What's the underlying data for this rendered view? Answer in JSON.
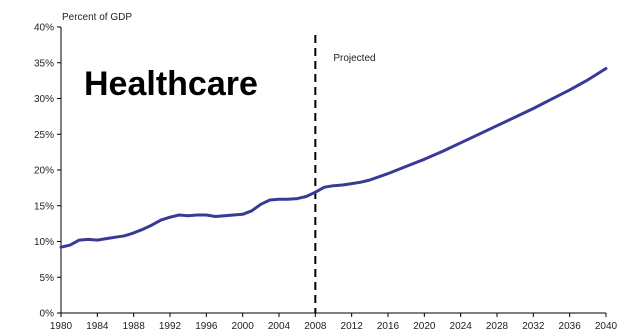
{
  "chart_data": {
    "type": "line",
    "title": "Healthcare",
    "ylabel": "Percent of GDP",
    "annotation": "Projected",
    "projection_start_x": 2008,
    "xlim": [
      1980,
      2040
    ],
    "ylim": [
      0,
      40
    ],
    "x_ticks": [
      1980,
      1984,
      1988,
      1992,
      1996,
      2000,
      2004,
      2008,
      2012,
      2016,
      2020,
      2024,
      2028,
      2032,
      2036,
      2040
    ],
    "y_ticks": [
      {
        "value": 0,
        "label": "0%"
      },
      {
        "value": 5,
        "label": "5%"
      },
      {
        "value": 10,
        "label": "10%"
      },
      {
        "value": 15,
        "label": "15%"
      },
      {
        "value": 20,
        "label": "20%"
      },
      {
        "value": 25,
        "label": "25%"
      },
      {
        "value": 30,
        "label": "30%"
      },
      {
        "value": 35,
        "label": "35%"
      },
      {
        "value": 40,
        "label": "40%"
      }
    ],
    "grid": false,
    "line_color": "#3a3a96",
    "series": [
      {
        "x": [
          1980,
          1981,
          1982,
          1983,
          1984,
          1985,
          1986,
          1987,
          1988,
          1989,
          1990,
          1991,
          1992,
          1993,
          1994,
          1995,
          1996,
          1997,
          1998,
          1999,
          2000,
          2001,
          2002,
          2003,
          2004,
          2005,
          2006,
          2007,
          2008,
          2009,
          2010,
          2011,
          2012,
          2013,
          2014,
          2016,
          2018,
          2020,
          2022,
          2024,
          2026,
          2028,
          2030,
          2032,
          2034,
          2036,
          2038,
          2040
        ],
        "y": [
          9.2,
          9.5,
          10.2,
          10.3,
          10.2,
          10.4,
          10.6,
          10.8,
          11.2,
          11.7,
          12.3,
          13.0,
          13.4,
          13.7,
          13.6,
          13.7,
          13.7,
          13.5,
          13.6,
          13.7,
          13.8,
          14.3,
          15.2,
          15.8,
          15.9,
          15.9,
          16.0,
          16.3,
          16.9,
          17.6,
          17.8,
          17.9,
          18.1,
          18.3,
          18.6,
          19.5,
          20.5,
          21.5,
          22.6,
          23.8,
          25.0,
          26.2,
          27.4,
          28.6,
          29.9,
          31.2,
          32.6,
          34.2
        ]
      }
    ]
  }
}
